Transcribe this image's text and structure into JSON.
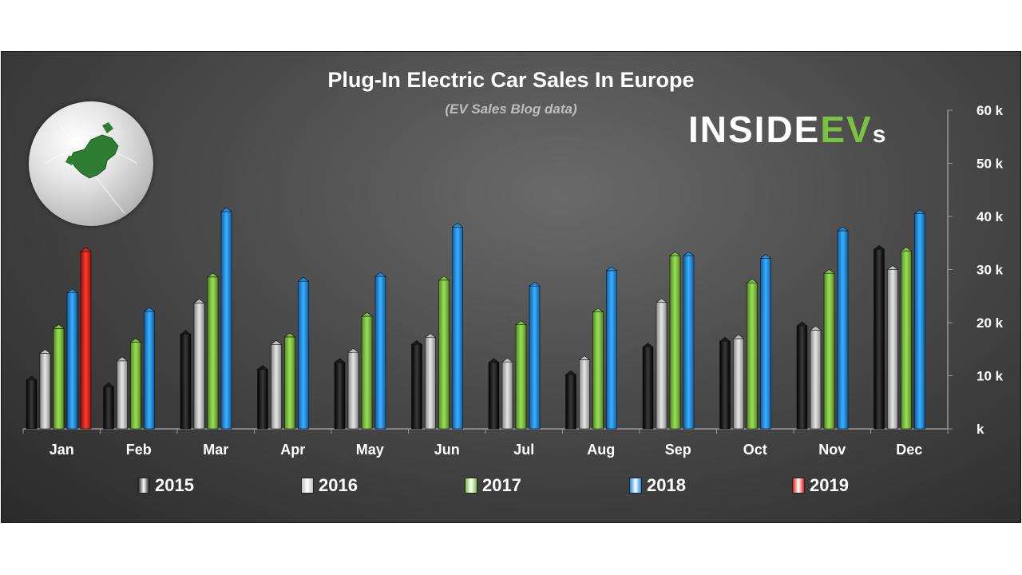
{
  "chart_data": {
    "type": "bar",
    "title": "Plug-In Electric Car Sales In Europe",
    "subtitle": "(EV Sales Blog data)",
    "xlabel": "",
    "ylabel": "",
    "ylim": [
      0,
      60000
    ],
    "y_ticks": [
      0,
      10000,
      20000,
      30000,
      40000,
      50000,
      60000
    ],
    "y_tick_labels": [
      "k",
      "10 k",
      "20 k",
      "30 k",
      "40 k",
      "50 k",
      "60 k"
    ],
    "y_axis_side": "right",
    "grid": false,
    "legend_position": "bottom",
    "categories": [
      "Jan",
      "Feb",
      "Mar",
      "Apr",
      "May",
      "Jun",
      "Jul",
      "Aug",
      "Sep",
      "Oct",
      "Nov",
      "Dec"
    ],
    "series": [
      {
        "name": "2015",
        "color": "#1a1a1a",
        "values": [
          9200,
          7900,
          17800,
          11200,
          12500,
          15900,
          12500,
          10200,
          15400,
          16500,
          19400,
          33800
        ]
      },
      {
        "name": "2016",
        "color": "#c0c0c0",
        "values": [
          14200,
          12800,
          23700,
          15900,
          14400,
          17200,
          12600,
          13000,
          23800,
          17000,
          18600,
          30000
        ]
      },
      {
        "name": "2017",
        "color": "#7cc242",
        "values": [
          18900,
          16300,
          28600,
          17300,
          21200,
          28000,
          19600,
          22000,
          32600,
          27500,
          29300,
          33500
        ]
      },
      {
        "name": "2018",
        "color": "#1e8fe0",
        "values": [
          25600,
          22100,
          40900,
          27800,
          28700,
          38000,
          26900,
          29800,
          32600,
          32100,
          37300,
          40500
        ]
      },
      {
        "name": "2019",
        "color": "#e0201a",
        "values": [
          33400,
          null,
          null,
          null,
          null,
          null,
          null,
          null,
          null,
          null,
          null,
          null
        ]
      }
    ]
  },
  "logo": {
    "part1": "INSIDE",
    "part2": "EV",
    "part3": "s"
  }
}
